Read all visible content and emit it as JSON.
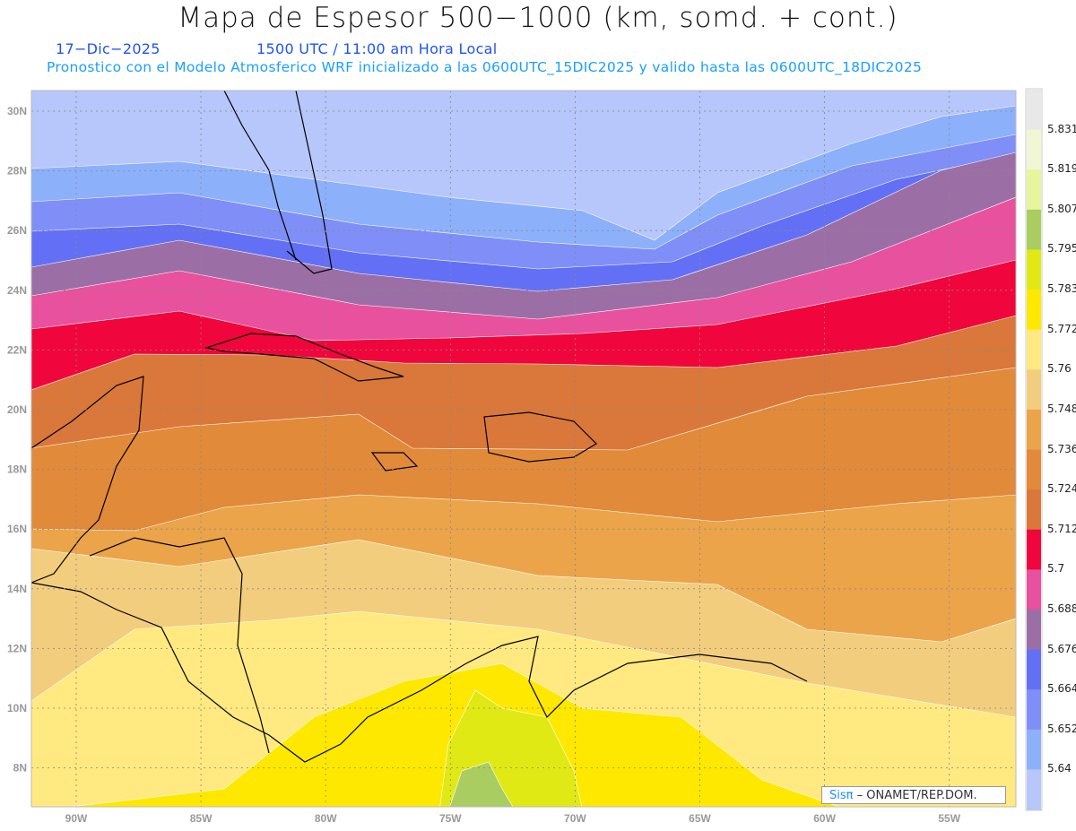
{
  "header": {
    "title": "Mapa de Espesor 500−1000 (km, somd. + cont.)",
    "date": "17−Dic−2025",
    "time": "1500 UTC / 11:00 am Hora Local",
    "info": "Pronostico con el Modelo Atmosferico WRF inicializado a las 0600UTC_15DIC2025 y valido hasta las  0600UTC_18DIC2025"
  },
  "axes": {
    "lat_labels": [
      "30N",
      "28N",
      "26N",
      "24N",
      "22N",
      "20N",
      "18N",
      "16N",
      "14N",
      "12N",
      "10N",
      "8N"
    ],
    "lon_labels": [
      "90W",
      "85W",
      "80W",
      "75W",
      "70W",
      "65W",
      "60W",
      "55W"
    ]
  },
  "colorbar": {
    "labels": [
      "5.831",
      "5.819",
      "5.807",
      "5.795",
      "5.783",
      "5.772",
      "5.76",
      "5.748",
      "5.736",
      "5.724",
      "5.712",
      "5.7",
      "5.688",
      "5.676",
      "5.664",
      "5.652",
      "5.64"
    ],
    "colors": [
      "#e8e8e8",
      "#f1f6d4",
      "#e7f59c",
      "#aacd62",
      "#e1e914",
      "#ffe800",
      "#ffe980",
      "#f2cd7d",
      "#eba44a",
      "#e18a3a",
      "#d9783a",
      "#f0063c",
      "#e8519d",
      "#9b6fa6",
      "#6370f5",
      "#7f8ff7",
      "#8db0fb",
      "#b7c6fb"
    ]
  },
  "credit": {
    "brand": "Sisπ",
    "text": " – ONAMET/REP.DOM."
  }
}
